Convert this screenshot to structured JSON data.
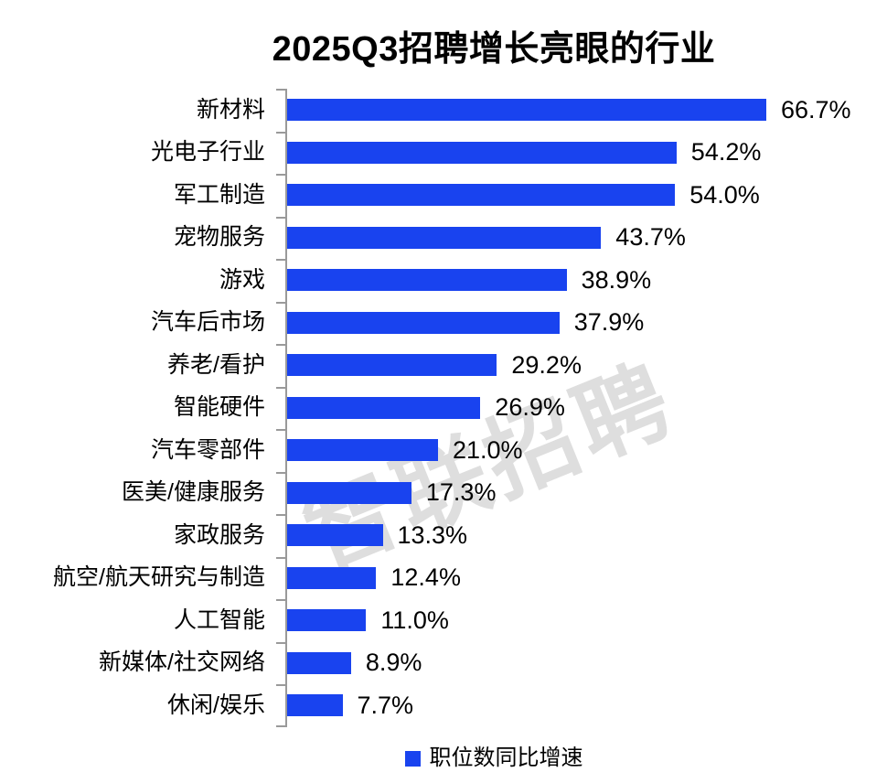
{
  "title": "2025Q3招聘增长亮眼的行业",
  "watermark": {
    "text": "智联招聘"
  },
  "legend": {
    "label": "职位数同比增速"
  },
  "colors": {
    "bar": "#1943ef",
    "axis": "#9a9a9a",
    "watermark": "#d9d9d9",
    "text": "#000000",
    "background": "#ffffff"
  },
  "chart_data": {
    "type": "bar",
    "orientation": "horizontal",
    "title": "2025Q3招聘增长亮眼的行业",
    "series_name": "职位数同比增速",
    "categories": [
      "新材料",
      "光电子行业",
      "军工制造",
      "宠物服务",
      "游戏",
      "汽车后市场",
      "养老/看护",
      "智能硬件",
      "汽车零部件",
      "医美/健康服务",
      "家政服务",
      "航空/航天研究与制造",
      "人工智能",
      "新媒体/社交网络",
      "休闲/娱乐"
    ],
    "values": [
      66.7,
      54.2,
      54.0,
      43.7,
      38.9,
      37.9,
      29.2,
      26.9,
      21.0,
      17.3,
      13.3,
      12.4,
      11.0,
      8.9,
      7.7
    ],
    "value_labels": [
      "66.7%",
      "54.2%",
      "54.0%",
      "43.7%",
      "38.9%",
      "37.9%",
      "29.2%",
      "26.9%",
      "21.0%",
      "17.3%",
      "13.3%",
      "12.4%",
      "11.0%",
      "8.9%",
      "7.7%"
    ],
    "unit": "%",
    "value_axis_shown": false,
    "grid": false,
    "legend_position": "bottom",
    "sorted": "descending"
  }
}
